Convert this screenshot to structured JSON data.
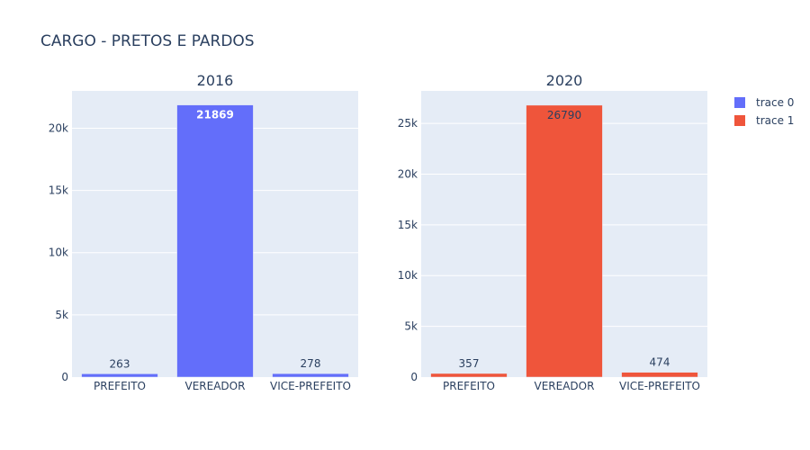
{
  "title": "CARGO - PRETOS E PARDOS",
  "colors": {
    "background": "#ffffff",
    "plot_background": "#e5ecf6",
    "gridline": "#ffffff",
    "text": "#2a3f5f",
    "inside_label_light": "#ffffff",
    "inside_label_dark": "#2a3f5f"
  },
  "chart_data": [
    {
      "type": "bar",
      "title": "2016",
      "categories": [
        "PREFEITO",
        "VEREADOR",
        "VICE-PREFEITO"
      ],
      "series": [
        {
          "name": "trace 0",
          "color": "#636efa",
          "values": [
            263,
            21869,
            278
          ]
        }
      ],
      "ylim": [
        0,
        23000
      ],
      "yticks": [
        0,
        5000,
        10000,
        15000,
        20000
      ],
      "ytick_labels": [
        "0",
        "5k",
        "10k",
        "15k",
        "20k"
      ],
      "xlabel": "",
      "ylabel": "",
      "grid": true
    },
    {
      "type": "bar",
      "title": "2020",
      "categories": [
        "PREFEITO",
        "VEREADOR",
        "VICE-PREFEITO"
      ],
      "series": [
        {
          "name": "trace 1",
          "color": "#ef553b",
          "values": [
            357,
            26790,
            474
          ]
        }
      ],
      "ylim": [
        0,
        28200
      ],
      "yticks": [
        0,
        5000,
        10000,
        15000,
        20000,
        25000
      ],
      "ytick_labels": [
        "0",
        "5k",
        "10k",
        "15k",
        "20k",
        "25k"
      ],
      "xlabel": "",
      "ylabel": "",
      "grid": true
    }
  ],
  "legend": {
    "placement": "top-right",
    "items": [
      {
        "label": "trace 0",
        "color": "#636efa"
      },
      {
        "label": "trace 1",
        "color": "#ef553b"
      }
    ]
  }
}
